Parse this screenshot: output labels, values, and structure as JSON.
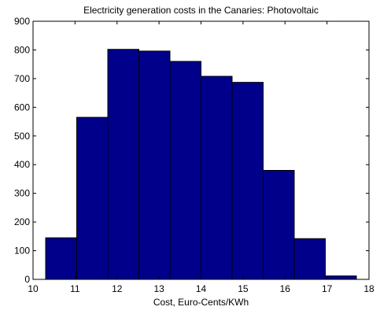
{
  "chart_data": {
    "type": "bar",
    "title": "Electricity generation costs in the Canaries: Photovoltaic",
    "xlabel": "Cost, Euro-Cents/KWh",
    "ylabel": "",
    "bin_edges": [
      10.3,
      11.04,
      11.78,
      12.52,
      13.26,
      14.0,
      14.74,
      15.48,
      16.22,
      16.96,
      17.7
    ],
    "values": [
      145,
      565,
      802,
      796,
      760,
      708,
      687,
      380,
      142,
      12
    ],
    "xlim": [
      10,
      18
    ],
    "ylim": [
      0,
      900
    ],
    "xticks": [
      "10",
      "11",
      "12",
      "13",
      "14",
      "15",
      "16",
      "17",
      "18"
    ],
    "yticks": [
      "0",
      "100",
      "200",
      "300",
      "400",
      "500",
      "600",
      "700",
      "800",
      "900"
    ],
    "bar_color": "#00008b",
    "grid": false,
    "legend": "none"
  }
}
